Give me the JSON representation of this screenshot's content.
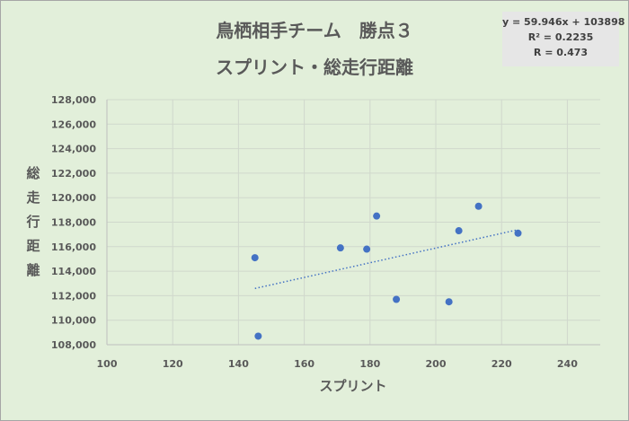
{
  "chart_data": {
    "type": "scatter",
    "title": "鳥栖相手チーム　勝点３",
    "subtitle": "スプリント・総走行距離",
    "xlabel": "スプリント",
    "ylabel": [
      "総",
      "走",
      "行",
      "距",
      "離"
    ],
    "xlim": [
      100,
      250
    ],
    "ylim": [
      108000,
      128000
    ],
    "x_ticks": [
      100,
      120,
      140,
      160,
      180,
      200,
      220,
      240
    ],
    "x_tick_labels": [
      "100",
      "120",
      "140",
      "160",
      "180",
      "200",
      "220",
      "240"
    ],
    "y_ticks": [
      108000,
      110000,
      112000,
      114000,
      116000,
      118000,
      120000,
      122000,
      124000,
      126000,
      128000
    ],
    "y_tick_labels": [
      "108,000",
      "110,000",
      "112,000",
      "114,000",
      "116,000",
      "118,000",
      "120,000",
      "122,000",
      "124,000",
      "126,000",
      "128,000"
    ],
    "grid": true,
    "series": [
      {
        "x": [
          145,
          146,
          171,
          179,
          182,
          188,
          204,
          207,
          213,
          225
        ],
        "y": [
          115100,
          108700,
          115900,
          115800,
          118500,
          111700,
          111500,
          117300,
          119300,
          117100
        ],
        "color": "#4472c4"
      }
    ],
    "trendline": {
      "slope": 59.946,
      "intercept": 103898,
      "x_range": [
        145,
        225
      ],
      "style": "dotted",
      "color": "#4472c4"
    },
    "annotations": {
      "equation": "y = 59.946x + 103898",
      "r_squared": "R² = 0.2235",
      "r": "R = 0.473"
    }
  }
}
